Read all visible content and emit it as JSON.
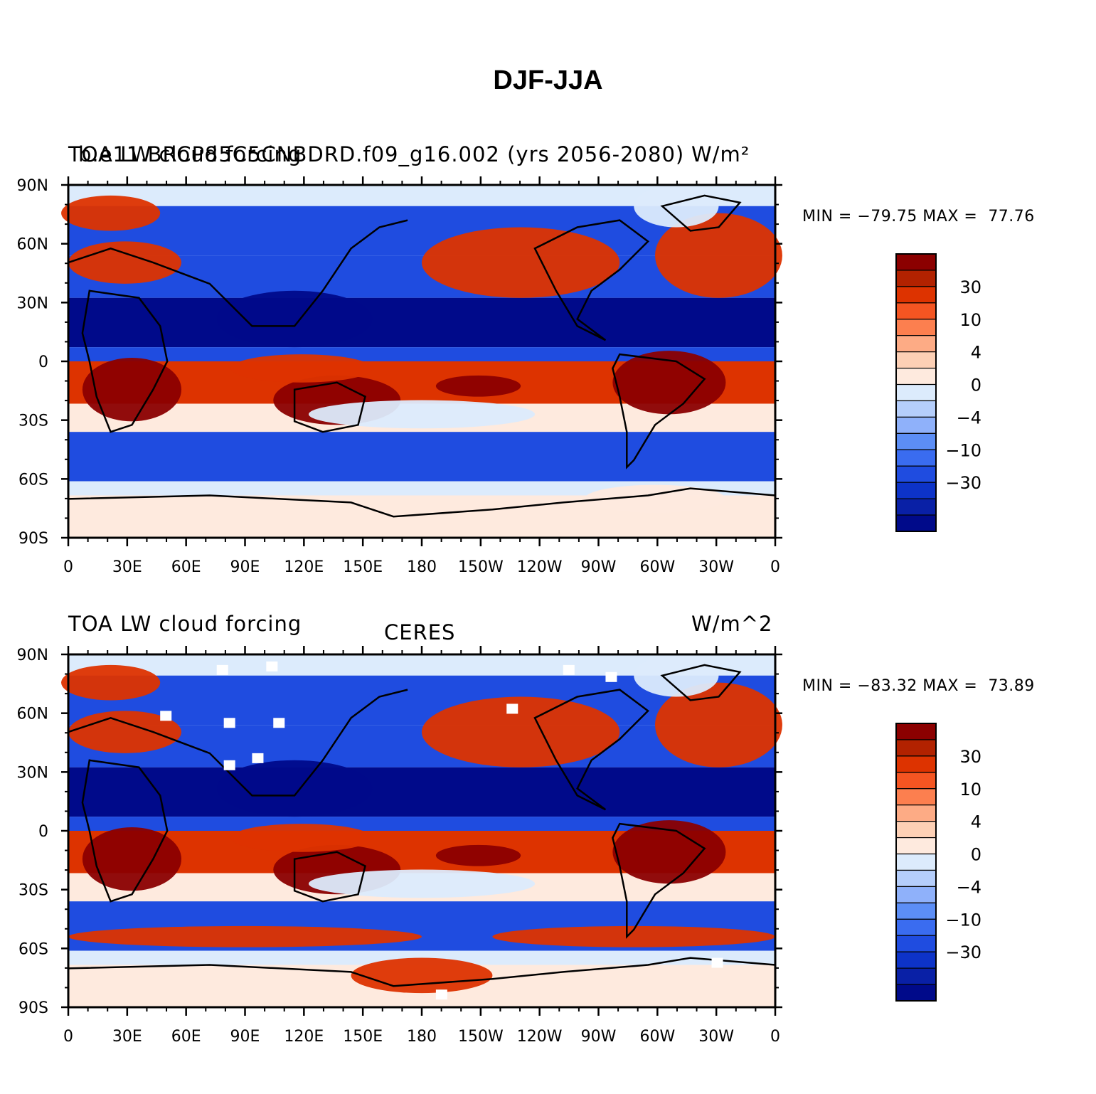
{
  "title": "DJF-JJA",
  "panels": [
    {
      "id": "model",
      "left_text": "TOA LW cloud forcing",
      "center_text": "b.e11.BRCP85C5CNBDRD.f09_g16.002 (yrs 2056-2080)",
      "right_text": "W/m²",
      "min_label": "MIN =",
      "min_value": "−79.75",
      "max_label": "MAX =",
      "max_value": "77.76"
    },
    {
      "id": "obs",
      "left_text": "TOA LW cloud forcing",
      "center_text": "CERES",
      "right_text": "W/m^2",
      "min_label": "MIN =",
      "min_value": "−83.32",
      "max_label": "MAX =",
      "max_value": "73.89"
    }
  ],
  "lat_labels": [
    "90N",
    "60N",
    "30N",
    "0",
    "30S",
    "60S",
    "90S"
  ],
  "lon_labels": [
    "0",
    "30E",
    "60E",
    "90E",
    "120E",
    "150E",
    "180",
    "150W",
    "120W",
    "90W",
    "60W",
    "30W",
    "0"
  ],
  "colorbar": {
    "colors": [
      "#8b0000",
      "#b22200",
      "#dd3300",
      "#f45522",
      "#fc7f4f",
      "#fdab85",
      "#fdd0b5",
      "#feeade",
      "#dcebfc",
      "#b5cefb",
      "#8fb1fa",
      "#5c8ef6",
      "#3a6cf0",
      "#1f4ce0",
      "#0d33c8",
      "#0920a6",
      "#000a8a"
    ],
    "labels": [
      "30",
      "10",
      "4",
      "0",
      "−4",
      "−10",
      "−30"
    ]
  },
  "colors": {
    "ocean_red": "#dd3300",
    "deep_red": "#8b0000",
    "blue": "#1f4ce0",
    "deep_blue": "#000a8a",
    "pale": "#feeade",
    "pale_blue": "#dcebfc"
  }
}
